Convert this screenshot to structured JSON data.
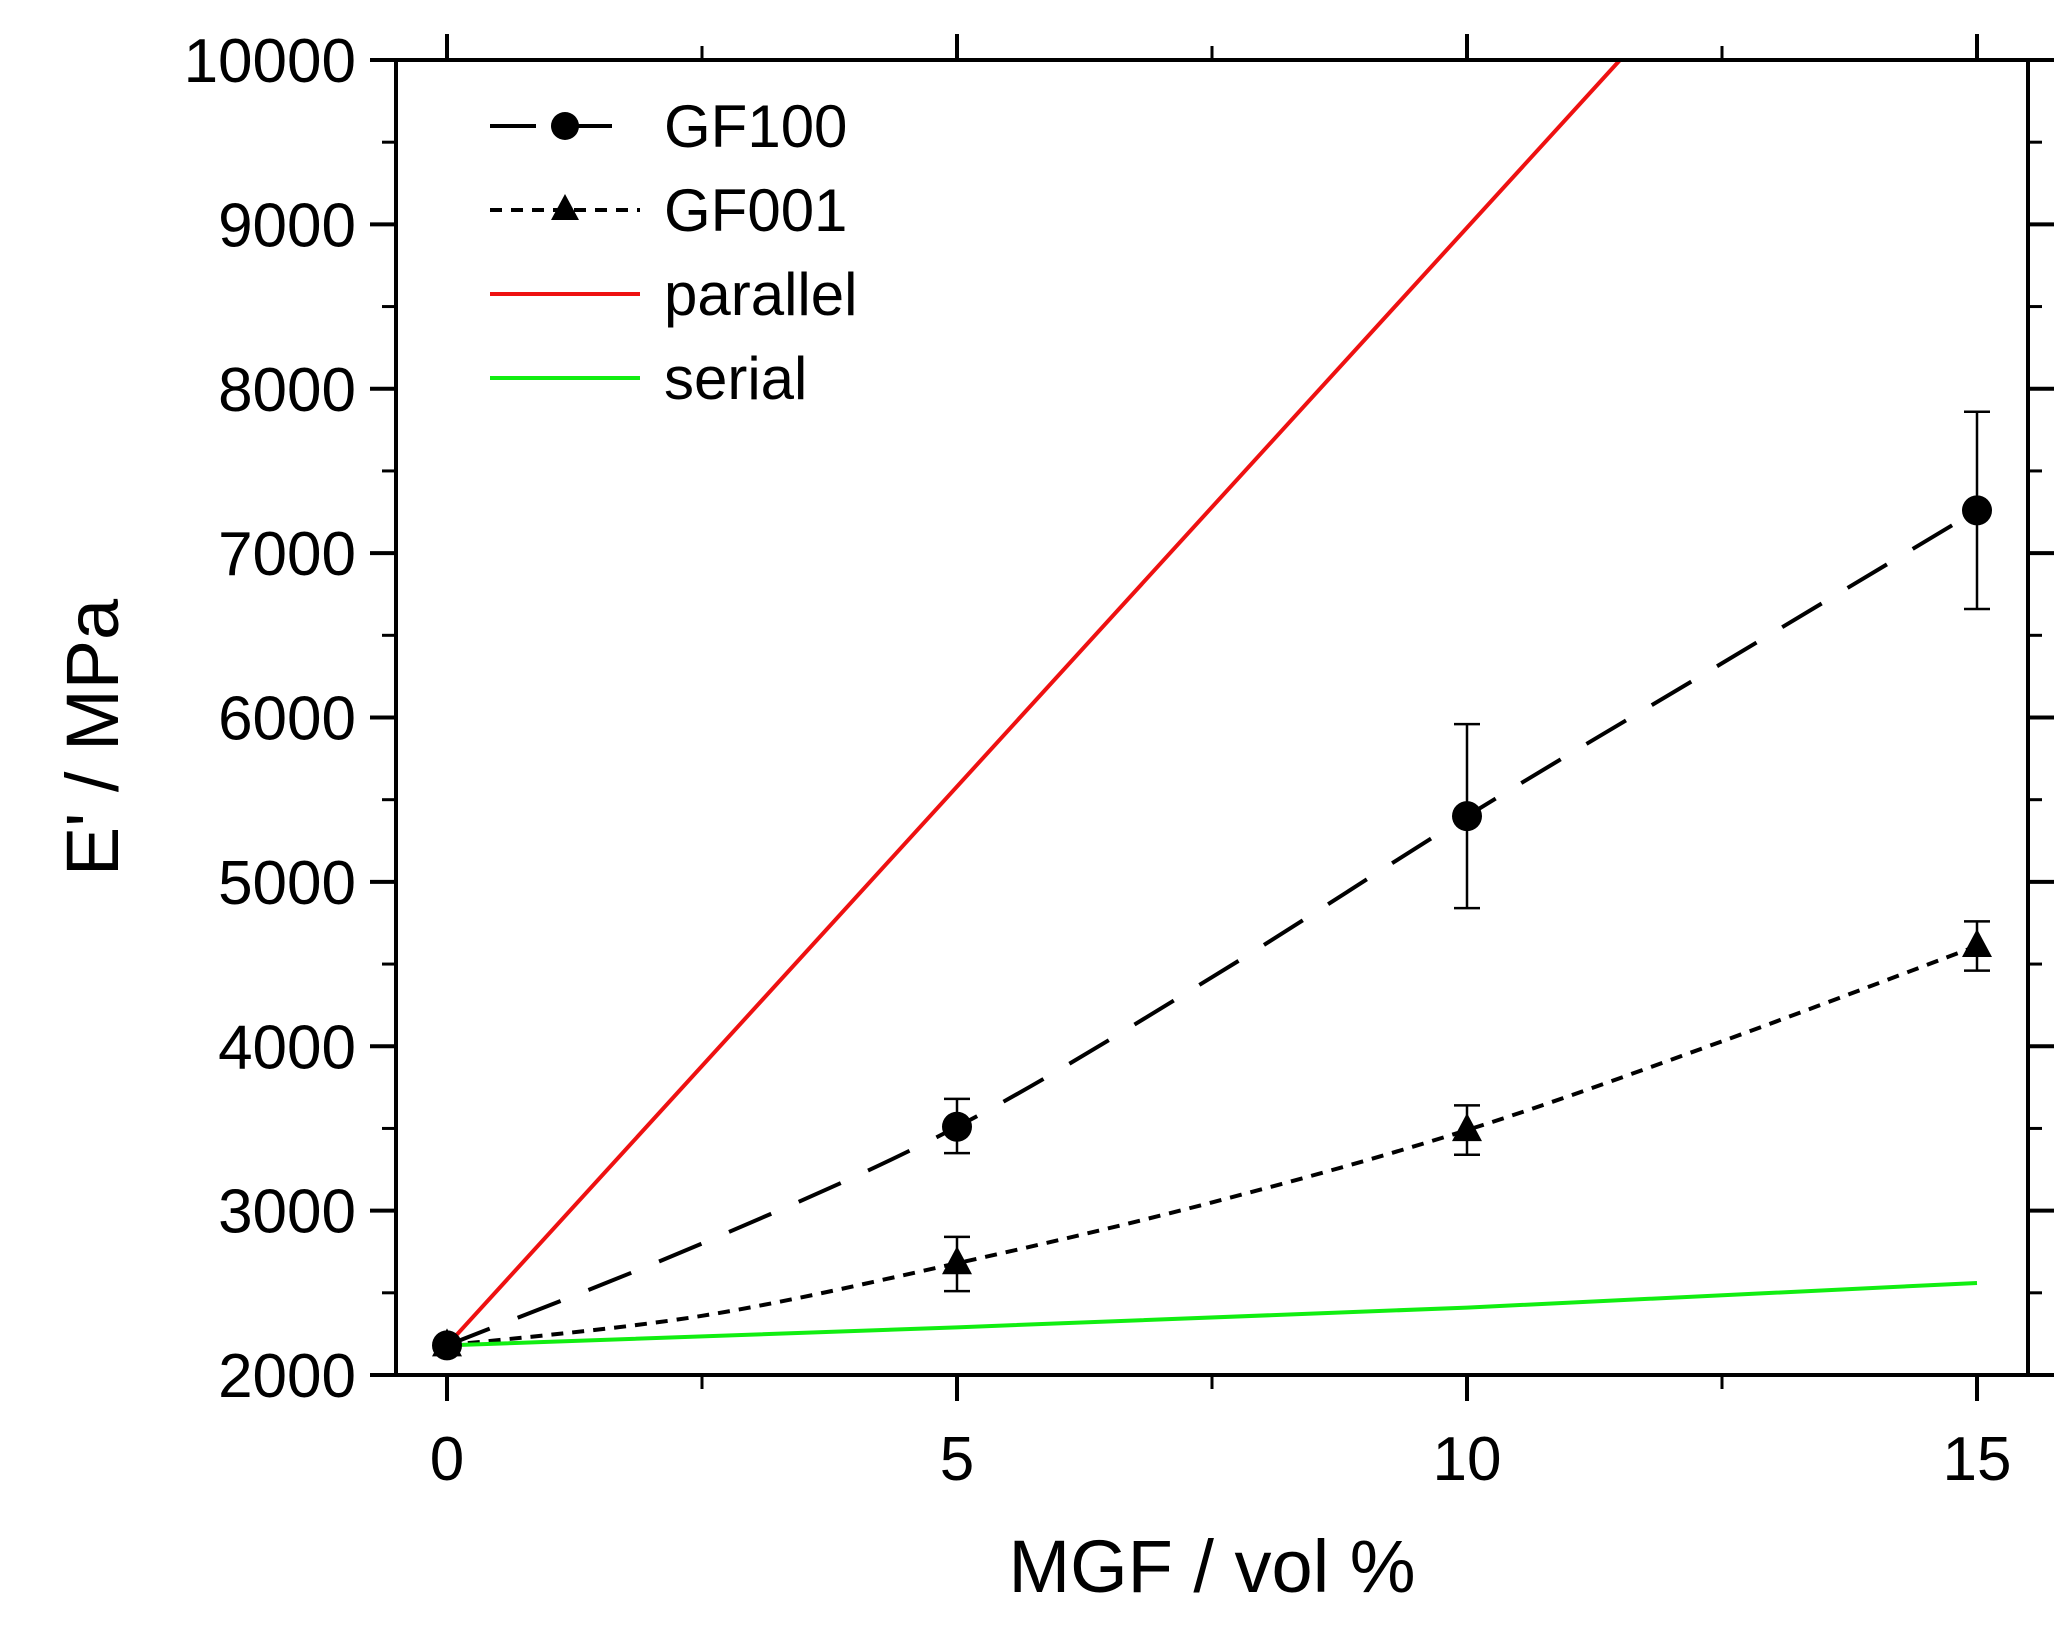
{
  "chart_data": {
    "type": "line",
    "xlabel": "MGF / vol %",
    "ylabel": "E' / MPa",
    "xlim": [
      -0.5,
      15.5
    ],
    "ylim": [
      2000,
      10000
    ],
    "x_ticks": [
      0,
      5,
      10,
      15
    ],
    "y_ticks": [
      2000,
      3000,
      4000,
      5000,
      6000,
      7000,
      8000,
      9000,
      10000
    ],
    "grid": false,
    "legend_position": "top-left",
    "series": [
      {
        "name": "GF100",
        "style": "dashed",
        "marker": "circle",
        "color": "#000000",
        "x": [
          0,
          5,
          10,
          15
        ],
        "y": [
          2180,
          3510,
          5400,
          7260
        ],
        "err_low": [
          2180,
          3350,
          4840,
          6660
        ],
        "err_high": [
          2180,
          3680,
          5960,
          7860
        ],
        "fit_x": [
          0,
          2.5,
          5,
          7.5,
          10,
          12.5,
          15
        ],
        "fit_y": [
          2180,
          2800,
          3510,
          4420,
          5400,
          6330,
          7260
        ]
      },
      {
        "name": "GF001",
        "style": "dotted",
        "marker": "triangle",
        "color": "#000000",
        "x": [
          0,
          5,
          10,
          15
        ],
        "y": [
          2180,
          2680,
          3490,
          4610
        ],
        "err_low": [
          2180,
          2510,
          3340,
          4460
        ],
        "err_high": [
          2180,
          2840,
          3640,
          4760
        ],
        "fit_x": [
          0,
          2.5,
          5,
          7.5,
          10,
          12.5,
          15
        ],
        "fit_y": [
          2180,
          2360,
          2680,
          3050,
          3490,
          4030,
          4610
        ]
      },
      {
        "name": "parallel",
        "style": "solid",
        "marker": "none",
        "color": "#ee1111",
        "x": [
          0,
          11.5
        ],
        "y": [
          2180,
          10000
        ]
      },
      {
        "name": "serial",
        "style": "solid",
        "marker": "none",
        "color": "#11ee11",
        "x": [
          0,
          5,
          10,
          15
        ],
        "y": [
          2180,
          2290,
          2410,
          2560
        ]
      }
    ]
  }
}
